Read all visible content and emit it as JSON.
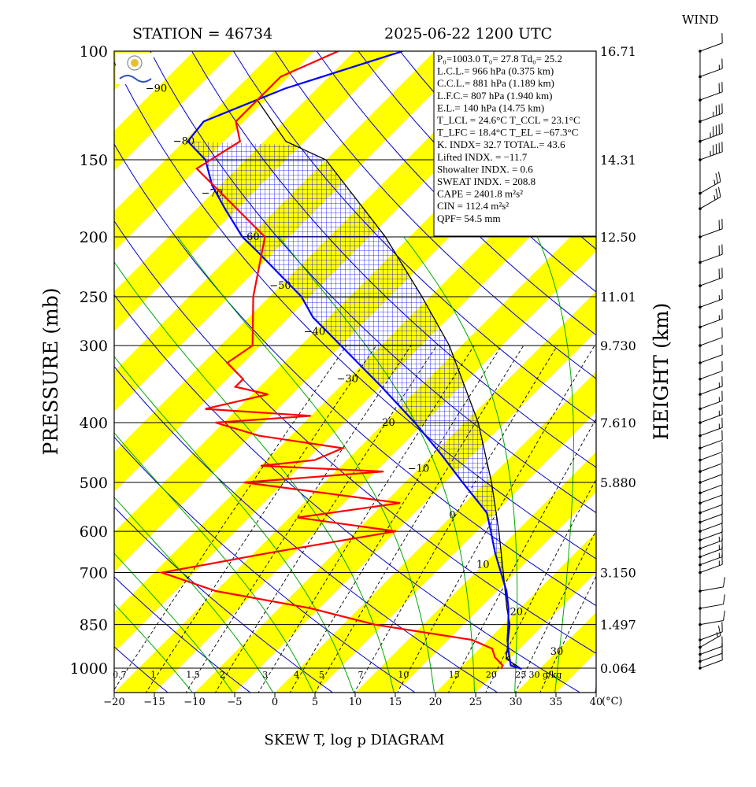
{
  "header": {
    "station": "STATION = 46734",
    "datetime": "2025-06-22 1200 UTC",
    "wind_title": "WIND"
  },
  "footer_title": "SKEW T, log p DIAGRAM",
  "colors": {
    "temperature": "#ff0000",
    "dewpoint": "#0000ff",
    "parcel": "#000000",
    "isotherm_band": "#ffff00",
    "dry_adiabat": "#0000cc",
    "moist_adiabat": "#00aa00",
    "mixing_ratio": "#000000"
  },
  "indices": [
    {
      "label": "P₀=1003.0  T₀= 27.8  Td₀= 25.2"
    },
    {
      "label": "L.C.L.= 966 hPa (0.375 km)"
    },
    {
      "label": "C.C.L.= 881 hPa (1.189 km)"
    },
    {
      "label": "L.F.C.= 807 hPa (1.940 km)"
    },
    {
      "label": "E.L.= 140 hPa (14.75 km)"
    },
    {
      "label": "T_LCL = 24.6°C  T_CCL = 23.1°C"
    },
    {
      "label": "T_LFC = 18.4°C   T_EL = −67.3°C"
    },
    {
      "label": "K. INDX= 32.7   TOTAL.= 43.6"
    },
    {
      "label": "Lifted INDX. = −11.7"
    },
    {
      "label": "Showalter INDX. =     0.6"
    },
    {
      "label": "SWEAT INDX. =   208.8"
    },
    {
      "label": "CAPE = 2401.8 m²s²"
    },
    {
      "label": "CIN   =   112.4 m²s²"
    },
    {
      "label": "QPF= 54.5 mm"
    }
  ],
  "chart_data": {
    "type": "line",
    "title": "SKEW T, log p DIAGRAM",
    "ylabel": "PRESSURE (mb)",
    "y2label": "HEIGHT (km)",
    "xlabel": "(°C)",
    "ylim": [
      1100,
      100
    ],
    "xlim": [
      -20,
      40
    ],
    "pressure_ticks": [
      100,
      150,
      200,
      250,
      300,
      400,
      500,
      600,
      700,
      850,
      1000
    ],
    "pressure_tick_labels": [
      "100",
      "150",
      "200",
      "250",
      "300",
      "400",
      "500",
      "600",
      "700",
      "850",
      "1000"
    ],
    "height_ticks": [
      100,
      150,
      200,
      250,
      300,
      400,
      500,
      700,
      850,
      1000
    ],
    "height_tick_labels": [
      "16.71",
      "14.31",
      "12.50",
      "11.01",
      "9.730",
      "7.610",
      "5.880",
      "3.150",
      "1.497",
      "0.064"
    ],
    "temp_ticks": [
      -20,
      -15,
      -10,
      -5,
      0,
      5,
      10,
      15,
      20,
      25,
      30,
      35,
      40
    ],
    "temp_tick_labels": [
      "−20",
      "−15",
      "−10",
      "−5",
      "0",
      "5",
      "10",
      "15",
      "20",
      "25",
      "30",
      "35",
      "40"
    ],
    "isotherm_labels": [
      {
        "t": -90,
        "p": 115,
        "text": "−90"
      },
      {
        "t": -80,
        "p": 140,
        "text": "−80"
      },
      {
        "t": -70,
        "p": 170,
        "text": "−70"
      },
      {
        "t": -60,
        "p": 200,
        "text": "−60"
      },
      {
        "t": -50,
        "p": 240,
        "text": "−50"
      },
      {
        "t": -40,
        "p": 285,
        "text": "−40"
      },
      {
        "t": -30,
        "p": 340,
        "text": "−30"
      },
      {
        "t": -20,
        "p": 400,
        "text": "−20"
      },
      {
        "t": -10,
        "p": 475,
        "text": "−10"
      },
      {
        "t": 0,
        "p": 565,
        "text": "0"
      },
      {
        "t": 10,
        "p": 680,
        "text": "10"
      },
      {
        "t": 20,
        "p": 810,
        "text": "20"
      },
      {
        "t": 30,
        "p": 940,
        "text": "30"
      }
    ],
    "mixing_ratio_labels": [
      "0.7",
      "1",
      "1.5",
      "2",
      "3",
      "4",
      "5",
      "7",
      "10",
      "15",
      "20",
      "25",
      "30 g/kg"
    ],
    "series": [
      {
        "name": "Temperature",
        "p": [
          1003,
          990,
          960,
          930,
          900,
          850,
          800,
          750,
          700,
          650,
          600,
          560,
          500,
          450,
          400,
          350,
          300,
          270,
          250,
          230,
          210,
          200,
          180,
          165,
          150,
          140,
          130,
          115,
          100
        ],
        "t": [
          27.8,
          26.0,
          24.8,
          23.6,
          22.4,
          20.6,
          18.6,
          16.2,
          13.2,
          10.0,
          6.8,
          4.0,
          -2.8,
          -9.0,
          -16.2,
          -24.8,
          -35.0,
          -42.0,
          -46.0,
          -51.5,
          -57.5,
          -60.8,
          -66.5,
          -71.0,
          -75.0,
          -79.5,
          -80.0,
          -74.0,
          -64.0
        ]
      },
      {
        "name": "Dewpoint",
        "p": [
          1003,
          990,
          960,
          930,
          900,
          850,
          800,
          750,
          700,
          650,
          600,
          570,
          540,
          500,
          480,
          470,
          460,
          440,
          420,
          400,
          390,
          380,
          360,
          350,
          340,
          320,
          300,
          250,
          200,
          155,
          140,
          130,
          110,
          100
        ],
        "td": [
          25.2,
          25.0,
          23.0,
          21.6,
          18.0,
          4.0,
          -6.0,
          -20.0,
          -29.0,
          -18.0,
          -5.0,
          -19.0,
          -8.0,
          -30.0,
          -14.0,
          -30.0,
          -24.0,
          -22.0,
          -34.0,
          -41.0,
          -30.0,
          -44.0,
          -38.0,
          -43.0,
          -43.0,
          -47.0,
          -46.0,
          -52.0,
          -58.0,
          -75.0,
          -73.0,
          -76.0,
          -76.0,
          -72.0
        ]
      },
      {
        "name": "Parcel",
        "p": [
          1003,
          966,
          900,
          850,
          800,
          700,
          600,
          500,
          400,
          300,
          250,
          200,
          150,
          140,
          120
        ],
        "t": [
          27.8,
          24.6,
          22.5,
          20.8,
          18.4,
          13.5,
          7.8,
          0.8,
          -8.3,
          -21.5,
          -31.0,
          -43.0,
          -60.0,
          -67.3,
          -76.0
        ]
      }
    ],
    "wind_barbs": {
      "p": [
        1000,
        975,
        950,
        925,
        900,
        850,
        800,
        750,
        700,
        680,
        660,
        640,
        620,
        600,
        580,
        560,
        540,
        520,
        500,
        480,
        460,
        440,
        420,
        400,
        380,
        360,
        340,
        320,
        300,
        280,
        260,
        240,
        220,
        200,
        180,
        170,
        150,
        140,
        130,
        120,
        110,
        100
      ],
      "speed_kt": [
        10,
        10,
        10,
        15,
        10,
        10,
        10,
        10,
        15,
        15,
        15,
        15,
        10,
        10,
        10,
        10,
        10,
        10,
        10,
        10,
        10,
        10,
        15,
        15,
        15,
        15,
        10,
        10,
        10,
        15,
        15,
        20,
        20,
        20,
        25,
        25,
        45,
        45,
        35,
        20,
        15,
        10
      ],
      "dir_deg": [
        250,
        250,
        250,
        240,
        250,
        260,
        260,
        260,
        250,
        250,
        250,
        250,
        250,
        250,
        250,
        250,
        250,
        250,
        250,
        250,
        250,
        250,
        250,
        250,
        250,
        250,
        250,
        250,
        250,
        250,
        250,
        250,
        250,
        250,
        240,
        240,
        250,
        250,
        250,
        250,
        250,
        250
      ]
    }
  }
}
